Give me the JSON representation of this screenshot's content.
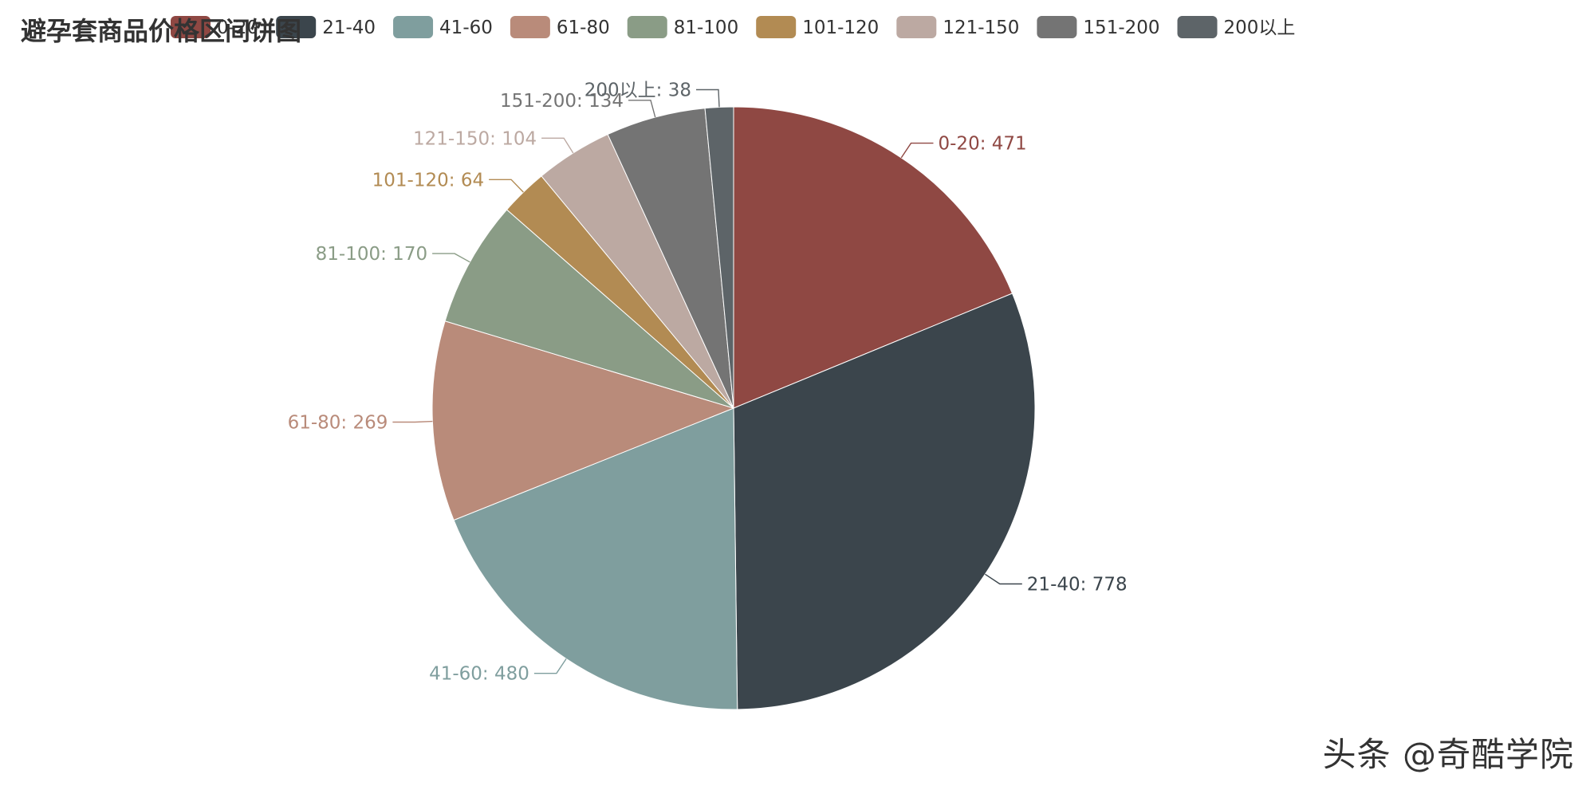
{
  "chart_data": {
    "type": "pie",
    "title": "避孕套商品价格区间饼图",
    "categories": [
      "0-20",
      "21-40",
      "41-60",
      "61-80",
      "81-100",
      "101-120",
      "121-150",
      "151-200",
      "200以上"
    ],
    "values": [
      471,
      778,
      480,
      269,
      170,
      64,
      104,
      134,
      38
    ],
    "colors": [
      "#8f4843",
      "#3b454c",
      "#7f9e9e",
      "#b98b7a",
      "#8a9c86",
      "#b28b53",
      "#bca9a2",
      "#747474",
      "#5d6468"
    ],
    "legend": {
      "position": "top",
      "entries": [
        "0-20",
        "21-40",
        "41-60",
        "61-80",
        "81-100",
        "101-120",
        "121-150",
        "151-200",
        "200以上"
      ]
    },
    "label_separator": ": "
  },
  "watermark": "头条 @奇酷学院"
}
